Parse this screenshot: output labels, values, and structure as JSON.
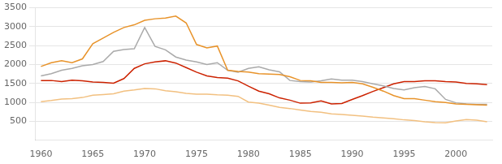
{
  "chart_data": {
    "type": "line",
    "x": [
      1960,
      1961,
      1962,
      1963,
      1964,
      1965,
      1966,
      1967,
      1968,
      1969,
      1970,
      1971,
      1972,
      1973,
      1974,
      1975,
      1976,
      1977,
      1978,
      1979,
      1980,
      1981,
      1982,
      1983,
      1984,
      1985,
      1986,
      1987,
      1988,
      1989,
      1990,
      1991,
      1992,
      1993,
      1994,
      1995,
      1996,
      1997,
      1998,
      1999,
      2000,
      2001,
      2002,
      2003
    ],
    "series": [
      {
        "color": "#E8932A",
        "values": [
          1950,
          2050,
          2100,
          2050,
          2150,
          2550,
          2700,
          2850,
          2980,
          3050,
          3170,
          3210,
          3230,
          3280,
          3100,
          2530,
          2440,
          2490,
          1850,
          1820,
          1800,
          1760,
          1750,
          1740,
          1680,
          1580,
          1570,
          1530,
          1530,
          1520,
          1530,
          1490,
          1400,
          1300,
          1180,
          1100,
          1100,
          1060,
          1020,
          1000,
          960,
          950,
          940,
          930
        ]
      },
      {
        "color": "#AAAAAA",
        "values": [
          1700,
          1760,
          1850,
          1900,
          1970,
          2000,
          2080,
          2350,
          2400,
          2420,
          2980,
          2480,
          2390,
          2200,
          2120,
          2070,
          2000,
          2050,
          1850,
          1800,
          1900,
          1940,
          1860,
          1810,
          1580,
          1550,
          1540,
          1570,
          1620,
          1590,
          1590,
          1550,
          1490,
          1440,
          1370,
          1330,
          1390,
          1420,
          1360,
          1080,
          990,
          960,
          950,
          950
        ]
      },
      {
        "color": "#CC2200",
        "values": [
          1580,
          1580,
          1550,
          1590,
          1570,
          1540,
          1530,
          1510,
          1630,
          1900,
          2020,
          2070,
          2100,
          2040,
          1920,
          1800,
          1700,
          1660,
          1640,
          1570,
          1430,
          1300,
          1230,
          1120,
          1060,
          980,
          990,
          1040,
          960,
          970,
          1080,
          1180,
          1290,
          1390,
          1490,
          1550,
          1550,
          1570,
          1570,
          1550,
          1540,
          1500,
          1490,
          1470
        ]
      },
      {
        "color": "#F2C080",
        "values": [
          1020,
          1050,
          1090,
          1100,
          1130,
          1190,
          1210,
          1230,
          1300,
          1330,
          1370,
          1360,
          1310,
          1280,
          1240,
          1220,
          1220,
          1200,
          1190,
          1160,
          1010,
          980,
          930,
          870,
          840,
          800,
          760,
          740,
          700,
          680,
          660,
          640,
          610,
          590,
          570,
          540,
          520,
          490,
          470,
          460,
          510,
          550,
          530,
          490
        ]
      }
    ],
    "xlim": [
      1959.5,
      2003.5
    ],
    "xticks": [
      1960,
      1965,
      1970,
      1975,
      1980,
      1985,
      1990,
      1995,
      2000
    ],
    "ylim": [
      0,
      3500
    ],
    "yticks": [
      500,
      1000,
      1500,
      2000,
      2500,
      3000,
      3500
    ],
    "grid": "y"
  }
}
